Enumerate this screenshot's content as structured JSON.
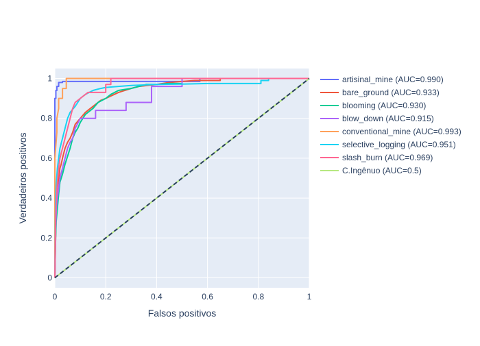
{
  "chart_data": {
    "type": "line",
    "title": "",
    "xlabel": "Falsos positivos",
    "ylabel": "Verdadeiros positivos",
    "xlim": [
      0,
      1
    ],
    "ylim": [
      -0.05,
      1.05
    ],
    "x_ticks": [
      0,
      0.2,
      0.4,
      0.6,
      0.8,
      1
    ],
    "x_tick_labels": [
      "0",
      "0.2",
      "0.4",
      "0.6",
      "0.8",
      "1"
    ],
    "y_ticks": [
      0,
      0.2,
      0.4,
      0.6,
      0.8,
      1
    ],
    "y_tick_labels": [
      "0",
      "0.2",
      "0.4",
      "0.6",
      "0.8",
      "1"
    ],
    "grid": true,
    "legend_position": "right",
    "plot_background": "#e5ecf6",
    "series": [
      {
        "name": "artisinal_mine   (AUC=0.990)",
        "color": "#636efa",
        "x": [
          0,
          0,
          0.004,
          0.004,
          0.008,
          0.008,
          0.015,
          0.015,
          0.03,
          0.03,
          0.1,
          0.1,
          0.57,
          0.57,
          1
        ],
        "y": [
          0,
          0.9,
          0.9,
          0.94,
          0.94,
          0.96,
          0.96,
          0.98,
          0.98,
          0.985,
          0.985,
          0.985,
          0.985,
          1,
          1
        ]
      },
      {
        "name": "bare_ground   (AUC=0.933)",
        "color": "#ef553b",
        "x": [
          0,
          0.003,
          0.005,
          0.007,
          0.01,
          0.015,
          0.02,
          0.025,
          0.03,
          0.04,
          0.05,
          0.06,
          0.07,
          0.08,
          0.1,
          0.12,
          0.15,
          0.18,
          0.2,
          0.25,
          0.3,
          0.33,
          0.4,
          0.45,
          0.5,
          0.55,
          0.6,
          0.65,
          0.65,
          1
        ],
        "y": [
          0,
          0.2,
          0.3,
          0.4,
          0.45,
          0.5,
          0.55,
          0.57,
          0.6,
          0.65,
          0.68,
          0.7,
          0.73,
          0.77,
          0.8,
          0.83,
          0.86,
          0.89,
          0.9,
          0.93,
          0.95,
          0.96,
          0.97,
          0.98,
          0.985,
          0.99,
          0.99,
          0.99,
          1,
          1
        ]
      },
      {
        "name": "blooming   (AUC=0.930)",
        "color": "#00cc96",
        "x": [
          0,
          0.003,
          0.005,
          0.01,
          0.015,
          0.02,
          0.03,
          0.04,
          0.05,
          0.06,
          0.07,
          0.08,
          0.09,
          0.1,
          0.12,
          0.15,
          0.17,
          0.2,
          0.22,
          0.25,
          0.3,
          0.33,
          0.36,
          0.4,
          0.45,
          0.5,
          0.5,
          1
        ],
        "y": [
          0,
          0.2,
          0.28,
          0.35,
          0.42,
          0.48,
          0.52,
          0.57,
          0.61,
          0.65,
          0.7,
          0.73,
          0.75,
          0.78,
          0.82,
          0.85,
          0.88,
          0.9,
          0.92,
          0.94,
          0.95,
          0.96,
          0.97,
          0.97,
          0.975,
          0.975,
          1,
          1
        ]
      },
      {
        "name": "blow_down   (AUC=0.915)",
        "color": "#ab63fa",
        "x": [
          0,
          0.003,
          0.006,
          0.01,
          0.015,
          0.02,
          0.03,
          0.04,
          0.05,
          0.06,
          0.07,
          0.08,
          0.1,
          0.12,
          0.16,
          0.16,
          0.28,
          0.28,
          0.38,
          0.38,
          0.5,
          0.5,
          1
        ],
        "y": [
          0,
          0.25,
          0.35,
          0.4,
          0.45,
          0.5,
          0.55,
          0.6,
          0.65,
          0.68,
          0.7,
          0.75,
          0.8,
          0.8,
          0.8,
          0.84,
          0.84,
          0.88,
          0.88,
          0.96,
          0.96,
          1,
          1
        ]
      },
      {
        "name": "conventional_mine   (AUC=0.993)",
        "color": "#ffa15a",
        "x": [
          0,
          0,
          0.003,
          0.008,
          0.008,
          0.015,
          0.015,
          0.03,
          0.03,
          0.045,
          0.045,
          1
        ],
        "y": [
          0,
          0.6,
          0.65,
          0.73,
          0.8,
          0.85,
          0.9,
          0.9,
          0.95,
          0.95,
          1,
          1
        ]
      },
      {
        "name": "selective_logging   (AUC=0.951)",
        "color": "#19d3f3",
        "x": [
          0,
          0.003,
          0.006,
          0.01,
          0.015,
          0.02,
          0.03,
          0.04,
          0.05,
          0.06,
          0.08,
          0.1,
          0.12,
          0.15,
          0.18,
          0.2,
          0.25,
          0.3,
          0.4,
          0.5,
          0.6,
          0.7,
          0.81,
          0.81,
          0.84,
          0.84,
          1
        ],
        "y": [
          0,
          0.4,
          0.48,
          0.55,
          0.6,
          0.65,
          0.7,
          0.75,
          0.8,
          0.83,
          0.86,
          0.9,
          0.92,
          0.94,
          0.95,
          0.955,
          0.96,
          0.965,
          0.97,
          0.972,
          0.975,
          0.975,
          0.975,
          0.99,
          0.99,
          1,
          1
        ]
      },
      {
        "name": "slash_burn   (AUC=0.969)",
        "color": "#ff6692",
        "x": [
          0,
          0.003,
          0.006,
          0.01,
          0.015,
          0.02,
          0.03,
          0.04,
          0.05,
          0.06,
          0.07,
          0.08,
          0.1,
          0.13,
          0.2,
          0.2,
          0.22,
          0.22,
          1
        ],
        "y": [
          0,
          0.3,
          0.4,
          0.48,
          0.55,
          0.6,
          0.65,
          0.7,
          0.75,
          0.8,
          0.85,
          0.88,
          0.9,
          0.93,
          0.93,
          0.97,
          0.97,
          1,
          1
        ]
      },
      {
        "name": "C.Ingênuo (AUC=0.5)",
        "color": "#b6e880",
        "x": [
          0,
          1
        ],
        "y": [
          0,
          1
        ]
      }
    ],
    "reference_line": {
      "x": [
        0,
        1
      ],
      "y": [
        0,
        1
      ],
      "color": "#2a3f5f",
      "dash": true
    }
  }
}
